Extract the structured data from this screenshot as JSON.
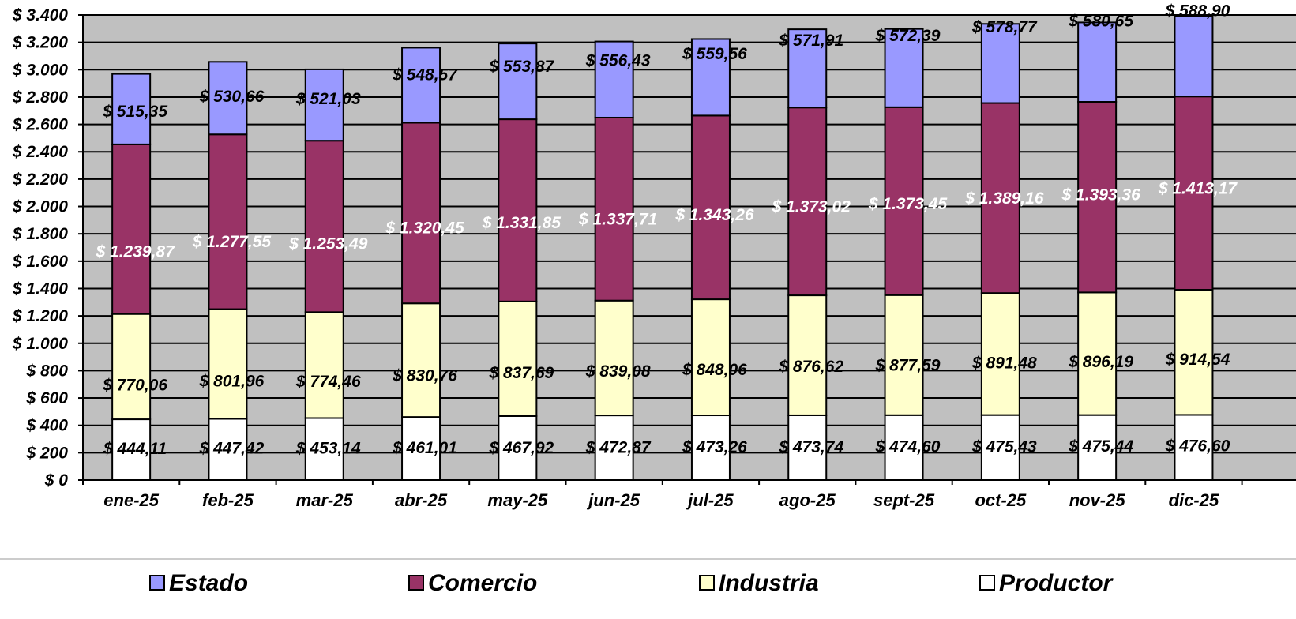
{
  "chart_data": {
    "type": "bar",
    "stacked": true,
    "categories": [
      "ene-25",
      "feb-25",
      "mar-25",
      "abr-25",
      "may-25",
      "jun-25",
      "jul-25",
      "ago-25",
      "sept-25",
      "oct-25",
      "nov-25",
      "dic-25"
    ],
    "series": [
      {
        "name": "Productor",
        "color": "#ffffff",
        "label_color": "#000000",
        "values": [
          444.11,
          447.42,
          453.14,
          461.01,
          467.92,
          472.87,
          473.26,
          473.74,
          474.6,
          475.43,
          475.44,
          476.6
        ],
        "labels": [
          "$ 444,11",
          "$ 447,42",
          "$ 453,14",
          "$ 461,01",
          "$ 467,92",
          "$ 472,87",
          "$ 473,26",
          "$ 473,74",
          "$ 474,60",
          "$ 475,43",
          "$ 475,44",
          "$ 476,60"
        ]
      },
      {
        "name": "Industria",
        "color": "#ffffcc",
        "label_color": "#000000",
        "values": [
          770.06,
          801.96,
          774.46,
          830.76,
          837.69,
          839.08,
          848.06,
          876.62,
          877.59,
          891.48,
          896.19,
          914.54
        ],
        "labels": [
          "$ 770,06",
          "$ 801,96",
          "$ 774,46",
          "$ 830,76",
          "$ 837,69",
          "$ 839,08",
          "$ 848,06",
          "$ 876,62",
          "$ 877,59",
          "$ 891,48",
          "$ 896,19",
          "$ 914,54"
        ]
      },
      {
        "name": "Comercio",
        "color": "#993366",
        "label_color": "#ffffff",
        "values": [
          1239.87,
          1277.55,
          1253.49,
          1320.45,
          1331.85,
          1337.71,
          1343.26,
          1373.02,
          1373.45,
          1389.16,
          1393.36,
          1413.17
        ],
        "labels": [
          "$ 1.239,87",
          "$ 1.277,55",
          "$ 1.253,49",
          "$ 1.320,45",
          "$ 1.331,85",
          "$ 1.337,71",
          "$ 1.343,26",
          "$ 1.373,02",
          "$ 1.373,45",
          "$ 1.389,16",
          "$ 1.393,36",
          "$ 1.413,17"
        ]
      },
      {
        "name": "Estado",
        "color": "#9999ff",
        "label_color": "#000000",
        "values": [
          515.35,
          530.66,
          521.03,
          548.57,
          553.87,
          556.43,
          559.56,
          571.91,
          572.39,
          578.77,
          580.65,
          588.9
        ],
        "labels": [
          "$ 515,35",
          "$ 530,66",
          "$ 521,03",
          "$ 548,57",
          "$ 553,87",
          "$ 556,43",
          "$ 559,56",
          "$ 571,91",
          "$ 572,39",
          "$ 578,77",
          "$ 580,65",
          "$ 588,90"
        ]
      }
    ],
    "ylim": [
      0,
      3400
    ],
    "yticks": [
      0,
      200,
      400,
      600,
      800,
      1000,
      1200,
      1400,
      1600,
      1800,
      2000,
      2200,
      2400,
      2600,
      2800,
      3000,
      3200,
      3400
    ],
    "ytick_labels": [
      "$ 0",
      "$ 200",
      "$ 400",
      "$ 600",
      "$ 800",
      "$ 1.000",
      "$ 1.200",
      "$ 1.400",
      "$ 1.600",
      "$ 1.800",
      "$ 2.000",
      "$ 2.200",
      "$ 2.400",
      "$ 2.600",
      "$ 2.800",
      "$ 3.000",
      "$ 3.200",
      "$ 3.400"
    ],
    "grid": true,
    "plot_background": "#c0c0c0",
    "legend": {
      "placement": "bottom",
      "order": [
        "Estado",
        "Comercio",
        "Industria",
        "Productor"
      ]
    }
  }
}
